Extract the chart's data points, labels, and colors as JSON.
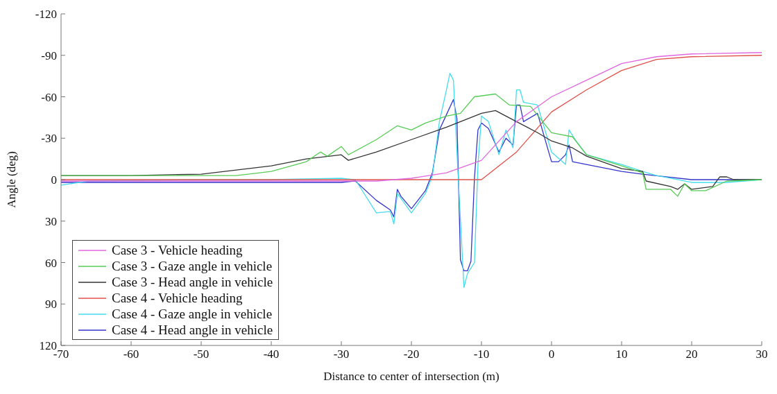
{
  "chart_data": {
    "type": "line",
    "xlabel": "Distance to center of intersection (m)",
    "ylabel": "Angle (deg)",
    "xlim": [
      -70,
      30
    ],
    "xticks": [
      -70,
      -60,
      -50,
      -40,
      -30,
      -20,
      -10,
      0,
      10,
      20,
      30
    ],
    "ylim": [
      120,
      -120
    ],
    "yticks": [
      -120,
      -90,
      -60,
      -30,
      0,
      30,
      60,
      90,
      120
    ],
    "grid": false,
    "legend": "bottom left",
    "line_style": "solid",
    "marker": "none",
    "series": [
      {
        "name": "Case 3 - Vehicle heading",
        "color": "#e066e0",
        "x": [
          -70,
          -40,
          -25,
          -20,
          -15,
          -10,
          -5,
          0,
          5,
          10,
          15,
          20,
          30
        ],
        "values": [
          1,
          1,
          1,
          -1,
          -5,
          -14,
          -42,
          -60,
          -72,
          -84,
          -89,
          -91,
          -92
        ]
      },
      {
        "name": "Case 3 - Gaze angle in vehicle",
        "color": "#55cc55",
        "x": [
          -70,
          -60,
          -50,
          -45,
          -40,
          -35,
          -33,
          -32,
          -30,
          -29,
          -25,
          -22,
          -20,
          -18,
          -15,
          -13,
          -11,
          -8,
          -6,
          -3,
          0,
          3,
          5,
          10,
          13,
          13.5,
          17,
          18,
          19,
          20,
          22,
          25,
          30
        ],
        "values": [
          -3,
          -3,
          -3,
          -3,
          -6,
          -13,
          -20,
          -17,
          -24,
          -18,
          -29,
          -39,
          -36,
          -41,
          -46,
          -48,
          -60,
          -62,
          -54,
          -53,
          -34,
          -31,
          -18,
          -10,
          -5,
          7,
          7,
          12,
          3,
          8,
          8,
          1,
          0
        ]
      },
      {
        "name": "Case 3 - Head angle in vehicle",
        "color": "#333333",
        "x": [
          -70,
          -60,
          -50,
          -40,
          -35,
          -30,
          -29,
          -25,
          -20,
          -15,
          -10,
          -8,
          -5,
          -2,
          0,
          3,
          5,
          10,
          13,
          13.5,
          17,
          18,
          19,
          20,
          23,
          24,
          25,
          26,
          30
        ],
        "values": [
          -3,
          -3,
          -4,
          -10,
          -15,
          -18,
          -14,
          -20,
          -29,
          -38,
          -48,
          -50,
          -42,
          -34,
          -28,
          -23,
          -17,
          -8,
          -6,
          1,
          5,
          7,
          3,
          7,
          5,
          -2,
          -2,
          0,
          0
        ]
      },
      {
        "name": "Case 4 - Vehicle heading",
        "color": "#e0504a",
        "x": [
          -70,
          -40,
          -20,
          -10,
          -5,
          0,
          5,
          10,
          15,
          20,
          30
        ],
        "values": [
          0,
          0,
          0,
          0,
          -20,
          -49,
          -65,
          -79,
          -87,
          -89,
          -90
        ]
      },
      {
        "name": "Case 4 - Gaze angle in vehicle",
        "color": "#44ddee",
        "x": [
          -70,
          -66,
          -50,
          -40,
          -30,
          -28,
          -25,
          -23,
          -22.5,
          -22,
          -20,
          -18,
          -17,
          -16,
          -15,
          -14.5,
          -14,
          -13.5,
          -12.5,
          -12,
          -11,
          -10.5,
          -10,
          -9,
          -7.5,
          -6.5,
          -5.5,
          -5,
          -4.5,
          -4,
          -2,
          0,
          2,
          2.5,
          3.5,
          5,
          10,
          13,
          15,
          20,
          25,
          30
        ],
        "values": [
          4,
          1,
          0,
          0,
          -1,
          0,
          24,
          23,
          32,
          10,
          24,
          10,
          -3,
          -42,
          -65,
          -77,
          -72,
          -20,
          78,
          68,
          60,
          -11,
          -46,
          -42,
          -18,
          -36,
          -23,
          -65,
          -65,
          -56,
          -54,
          -20,
          -11,
          -36,
          -28,
          -18,
          -11,
          -6,
          -3,
          2,
          2,
          0
        ]
      },
      {
        "name": "Case 4 - Head angle in vehicle",
        "color": "#3333cc",
        "x": [
          -70,
          -50,
          -40,
          -30,
          -28,
          -25,
          -23,
          -22.5,
          -22,
          -21.5,
          -20,
          -18,
          -17,
          -16,
          -15,
          -14,
          -13.5,
          -13,
          -12.5,
          -12,
          -11.5,
          -11,
          -10.5,
          -10,
          -9,
          -7.5,
          -6.5,
          -5.5,
          -5,
          -4.5,
          -4,
          -2,
          0,
          1,
          2,
          2.5,
          3,
          5,
          10,
          13,
          20,
          25,
          30
        ],
        "values": [
          2,
          2,
          2,
          2,
          1,
          15,
          22,
          27,
          7,
          12,
          21,
          8,
          -5,
          -36,
          -47,
          -58,
          -44,
          58,
          66,
          66,
          59,
          -1,
          -36,
          -41,
          -37,
          -20,
          -30,
          -25,
          -54,
          -54,
          -42,
          -48,
          -13,
          -13,
          -18,
          -25,
          -13,
          -11,
          -6,
          -4,
          0,
          0,
          0
        ]
      }
    ]
  }
}
